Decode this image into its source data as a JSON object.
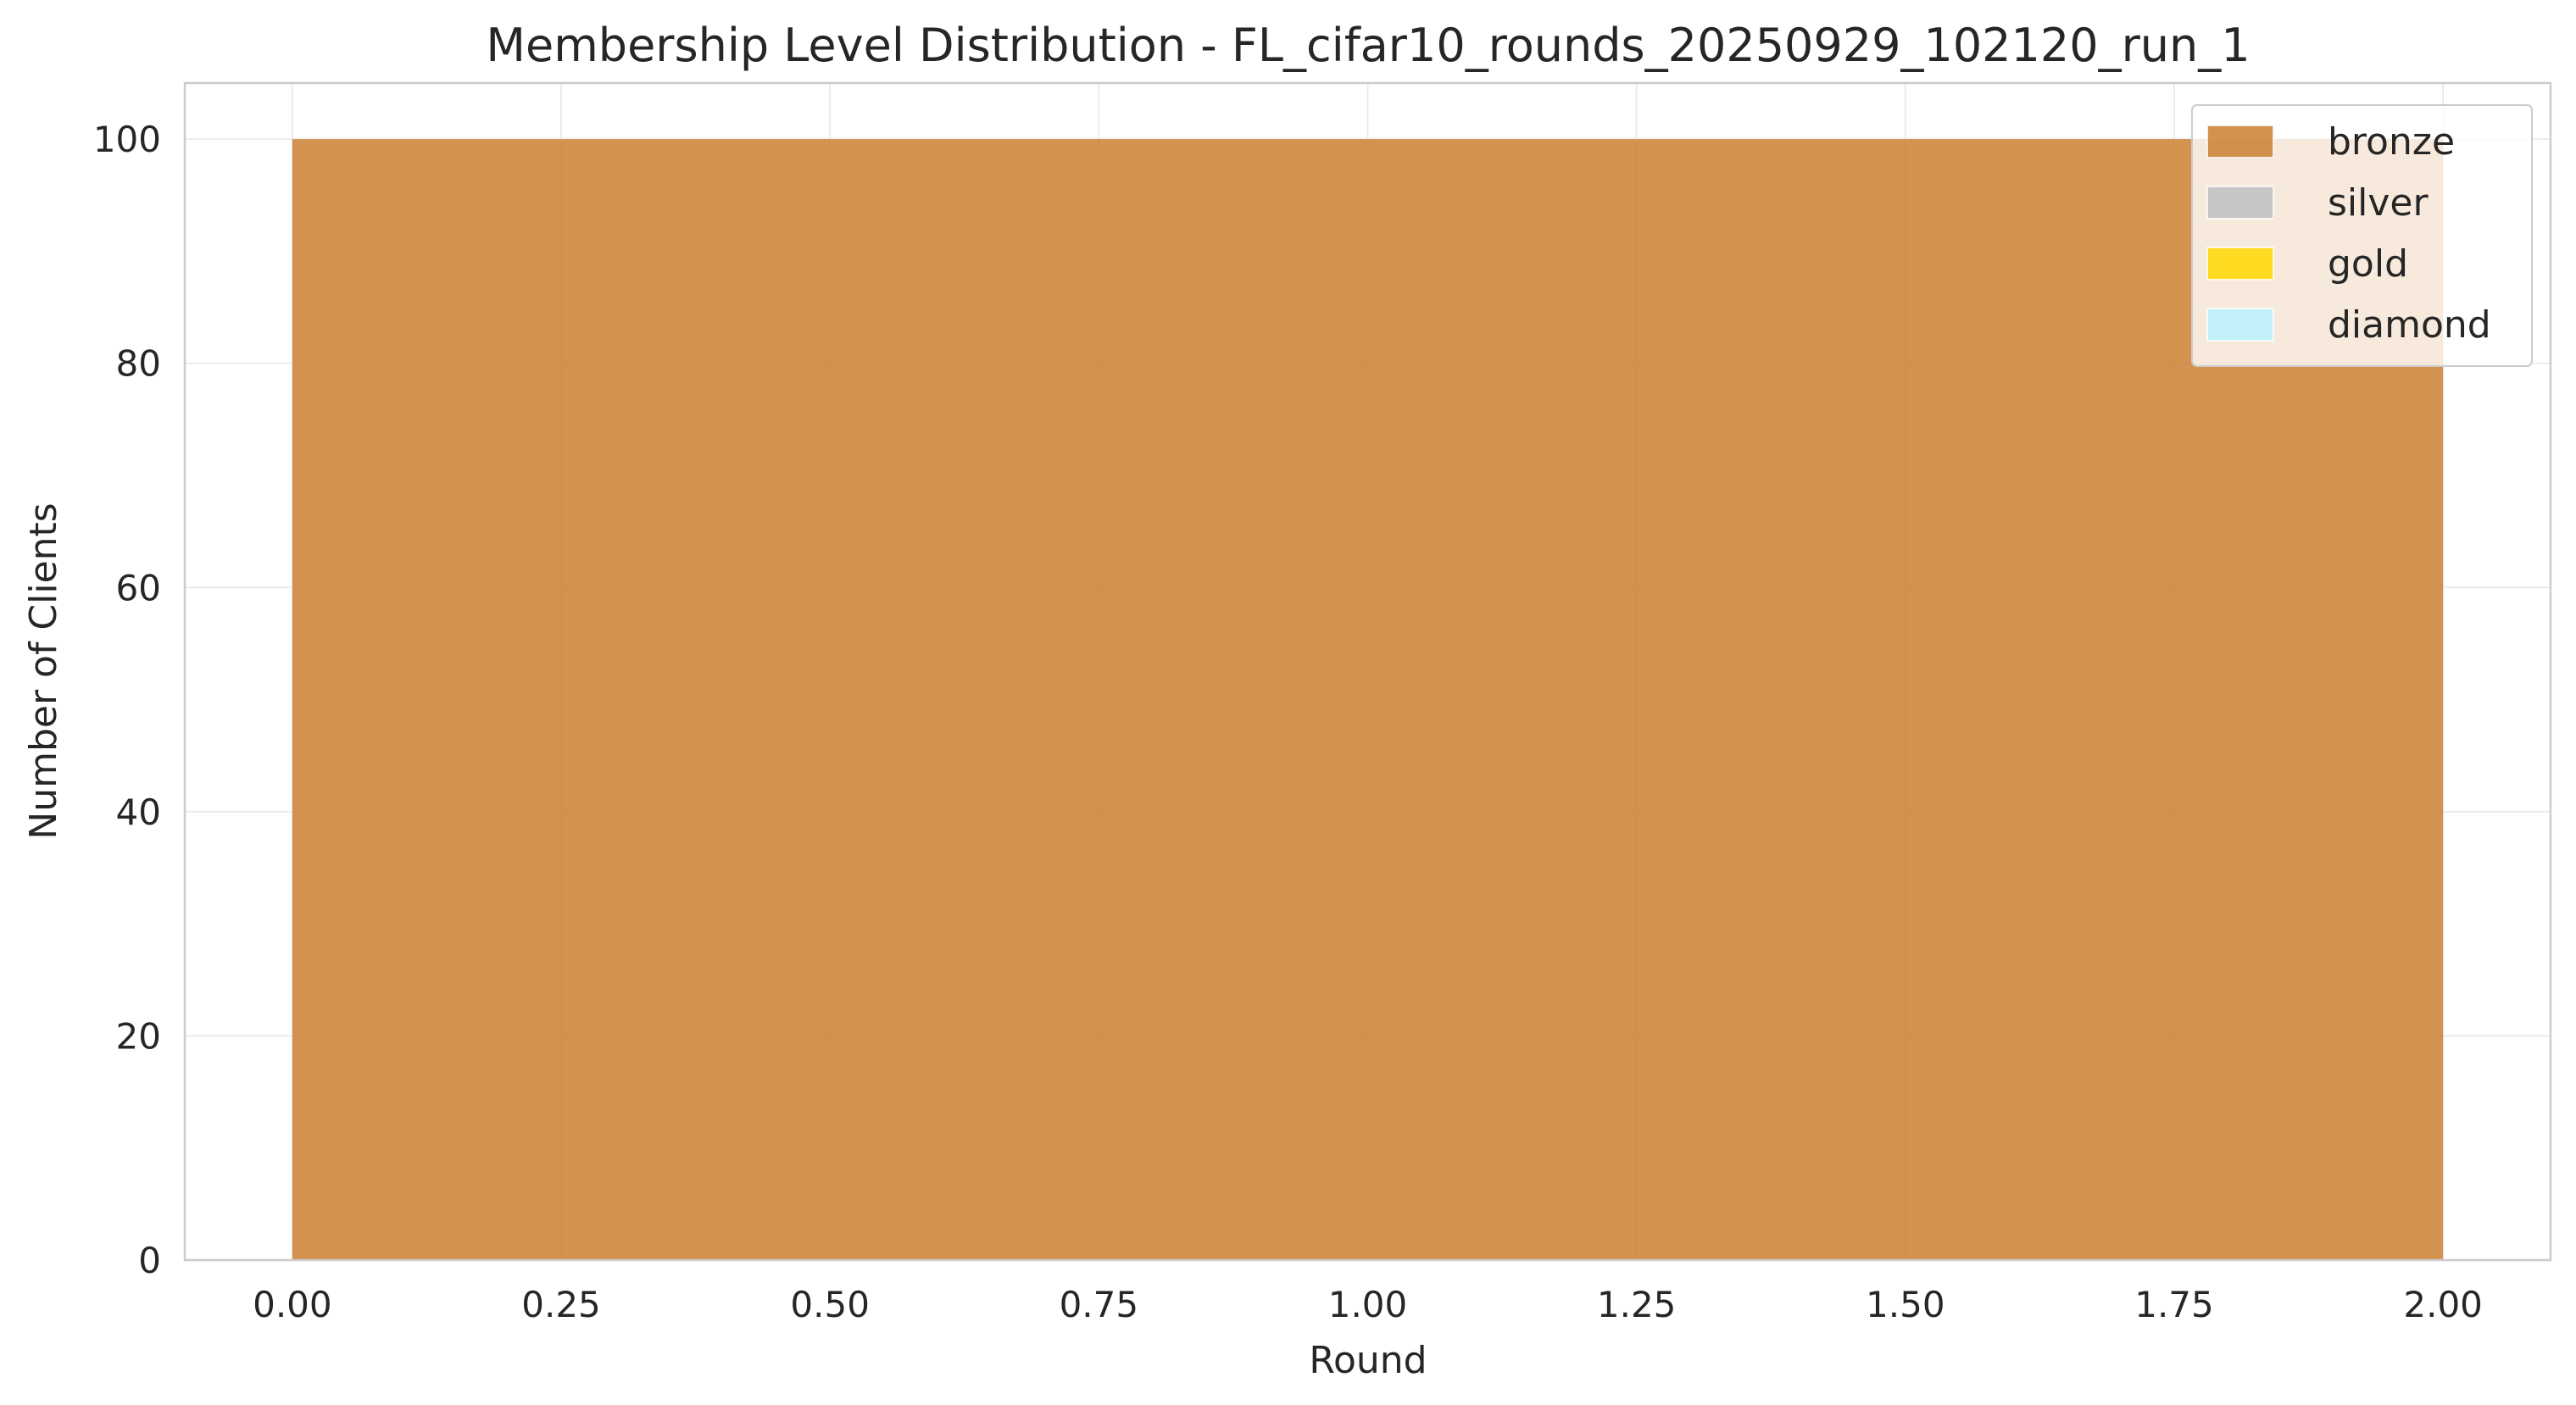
{
  "chart_data": {
    "type": "area",
    "stacked": true,
    "title": "Membership Level Distribution - FL_cifar10_rounds_20250929_102120_run_1",
    "xlabel": "Round",
    "ylabel": "Number of Clients",
    "x": [
      0,
      1,
      2
    ],
    "xlim": [
      -0.1,
      2.1
    ],
    "ylim": [
      0,
      105
    ],
    "xticks": [
      "0.00",
      "0.25",
      "0.50",
      "0.75",
      "1.00",
      "1.25",
      "1.50",
      "1.75",
      "2.00"
    ],
    "yticks": [
      "0",
      "20",
      "40",
      "60",
      "80",
      "100"
    ],
    "grid": true,
    "legend_position": "top-right",
    "series": [
      {
        "name": "bronze",
        "color": "#CD7F32",
        "values": [
          100,
          100,
          100
        ]
      },
      {
        "name": "silver",
        "color": "#C0C0C0",
        "values": [
          0,
          0,
          0
        ]
      },
      {
        "name": "gold",
        "color": "#FFD700",
        "values": [
          0,
          0,
          0
        ]
      },
      {
        "name": "diamond",
        "color": "#B9F2FF",
        "values": [
          0,
          0,
          0
        ]
      }
    ]
  }
}
